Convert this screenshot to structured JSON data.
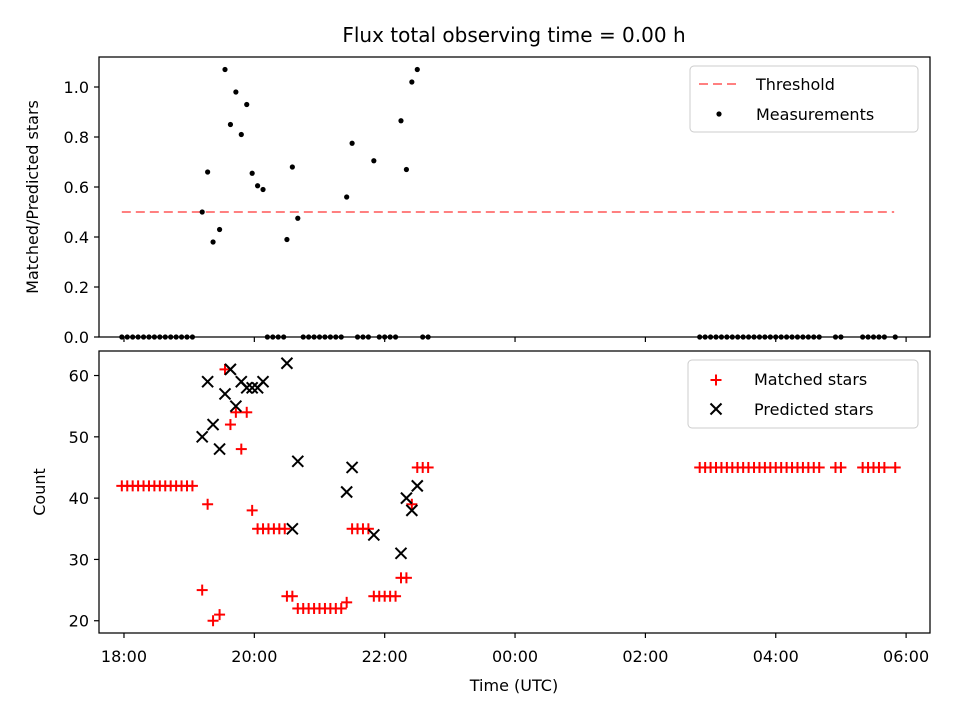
{
  "chart_data": [
    {
      "type": "scatter",
      "title": "Flux total observing time = 0.00 h",
      "ylabel": "Matched/Predicted stars",
      "ylim": [
        0.0,
        1.12
      ],
      "xlim": [
        "17:37",
        "06:22"
      ],
      "yticks": [
        "0.0",
        "0.2",
        "0.4",
        "0.6",
        "0.8",
        "1.0"
      ],
      "yticks_values": [
        0.0,
        0.2,
        0.4,
        0.6,
        0.8,
        1.0
      ],
      "legend_position": "top-right",
      "threshold": {
        "name": "Threshold",
        "y": 0.5,
        "x_start": "17:58",
        "x_end": "05:49",
        "color": "#ff8080"
      },
      "series": [
        {
          "name": "Measurements",
          "color": "#000000",
          "points": [
            [
              "17:58",
              0.0
            ],
            [
              "18:03",
              0.0
            ],
            [
              "18:08",
              0.0
            ],
            [
              "18:13",
              0.0
            ],
            [
              "18:18",
              0.0
            ],
            [
              "18:23",
              0.0
            ],
            [
              "18:28",
              0.0
            ],
            [
              "18:33",
              0.0
            ],
            [
              "18:38",
              0.0
            ],
            [
              "18:43",
              0.0
            ],
            [
              "18:48",
              0.0
            ],
            [
              "18:53",
              0.0
            ],
            [
              "18:58",
              0.0
            ],
            [
              "19:03",
              0.0
            ],
            [
              "19:12",
              0.5
            ],
            [
              "19:17",
              0.66
            ],
            [
              "19:22",
              0.38
            ],
            [
              "19:28",
              0.43
            ],
            [
              "19:33",
              1.07
            ],
            [
              "19:38",
              0.85
            ],
            [
              "19:43",
              0.98
            ],
            [
              "19:48",
              0.81
            ],
            [
              "19:53",
              0.93
            ],
            [
              "19:58",
              0.655
            ],
            [
              "20:03",
              0.605
            ],
            [
              "20:08",
              0.59
            ],
            [
              "20:12",
              0.0
            ],
            [
              "20:17",
              0.0
            ],
            [
              "20:22",
              0.0
            ],
            [
              "20:27",
              0.0
            ],
            [
              "20:30",
              0.39
            ],
            [
              "20:35",
              0.68
            ],
            [
              "20:40",
              0.475
            ],
            [
              "20:45",
              0.0
            ],
            [
              "20:50",
              0.0
            ],
            [
              "20:55",
              0.0
            ],
            [
              "21:00",
              0.0
            ],
            [
              "21:05",
              0.0
            ],
            [
              "21:10",
              0.0
            ],
            [
              "21:15",
              0.0
            ],
            [
              "21:20",
              0.0
            ],
            [
              "21:25",
              0.56
            ],
            [
              "21:30",
              0.775
            ],
            [
              "21:35",
              0.0
            ],
            [
              "21:40",
              0.0
            ],
            [
              "21:45",
              0.0
            ],
            [
              "21:50",
              0.705
            ],
            [
              "21:55",
              0.0
            ],
            [
              "22:00",
              0.0
            ],
            [
              "22:05",
              0.0
            ],
            [
              "22:10",
              0.0
            ],
            [
              "22:15",
              0.865
            ],
            [
              "22:20",
              0.67
            ],
            [
              "22:25",
              1.02
            ],
            [
              "22:30",
              1.07
            ],
            [
              "22:35",
              0.0
            ],
            [
              "22:40",
              0.0
            ],
            [
              "02:50",
              0.0
            ],
            [
              "02:55",
              0.0
            ],
            [
              "03:00",
              0.0
            ],
            [
              "03:05",
              0.0
            ],
            [
              "03:10",
              0.0
            ],
            [
              "03:15",
              0.0
            ],
            [
              "03:20",
              0.0
            ],
            [
              "03:25",
              0.0
            ],
            [
              "03:30",
              0.0
            ],
            [
              "03:35",
              0.0
            ],
            [
              "03:40",
              0.0
            ],
            [
              "03:45",
              0.0
            ],
            [
              "03:50",
              0.0
            ],
            [
              "03:55",
              0.0
            ],
            [
              "04:00",
              0.0
            ],
            [
              "04:05",
              0.0
            ],
            [
              "04:10",
              0.0
            ],
            [
              "04:15",
              0.0
            ],
            [
              "04:20",
              0.0
            ],
            [
              "04:25",
              0.0
            ],
            [
              "04:30",
              0.0
            ],
            [
              "04:35",
              0.0
            ],
            [
              "04:40",
              0.0
            ],
            [
              "04:55",
              0.0
            ],
            [
              "05:00",
              0.0
            ],
            [
              "05:20",
              0.0
            ],
            [
              "05:25",
              0.0
            ],
            [
              "05:30",
              0.0
            ],
            [
              "05:35",
              0.0
            ],
            [
              "05:40",
              0.0
            ],
            [
              "05:50",
              0.0
            ]
          ]
        }
      ]
    },
    {
      "type": "scatter",
      "title": "",
      "xlabel": "Time (UTC)",
      "ylabel": "Count",
      "ylim": [
        18,
        64
      ],
      "xlim": [
        "17:37",
        "06:22"
      ],
      "xticks": [
        "18:00",
        "20:00",
        "22:00",
        "00:00",
        "02:00",
        "04:00",
        "06:00"
      ],
      "yticks": [
        "20",
        "30",
        "40",
        "50",
        "60"
      ],
      "yticks_values": [
        20,
        30,
        40,
        50,
        60
      ],
      "legend_position": "top-right",
      "series": [
        {
          "name": "Matched stars",
          "marker": "plus",
          "color": "#ff0000",
          "points": [
            [
              "17:58",
              42
            ],
            [
              "18:03",
              42
            ],
            [
              "18:08",
              42
            ],
            [
              "18:13",
              42
            ],
            [
              "18:18",
              42
            ],
            [
              "18:23",
              42
            ],
            [
              "18:28",
              42
            ],
            [
              "18:33",
              42
            ],
            [
              "18:38",
              42
            ],
            [
              "18:43",
              42
            ],
            [
              "18:48",
              42
            ],
            [
              "18:53",
              42
            ],
            [
              "18:58",
              42
            ],
            [
              "19:03",
              42
            ],
            [
              "19:12",
              25
            ],
            [
              "19:17",
              39
            ],
            [
              "19:22",
              20
            ],
            [
              "19:28",
              21
            ],
            [
              "19:33",
              61
            ],
            [
              "19:38",
              52
            ],
            [
              "19:43",
              54
            ],
            [
              "19:48",
              48
            ],
            [
              "19:53",
              54
            ],
            [
              "19:58",
              38
            ],
            [
              "20:03",
              35
            ],
            [
              "20:08",
              35
            ],
            [
              "20:13",
              35
            ],
            [
              "20:18",
              35
            ],
            [
              "20:23",
              35
            ],
            [
              "20:28",
              35
            ],
            [
              "20:30",
              24
            ],
            [
              "20:35",
              24
            ],
            [
              "20:40",
              22
            ],
            [
              "20:45",
              22
            ],
            [
              "20:50",
              22
            ],
            [
              "20:55",
              22
            ],
            [
              "21:00",
              22
            ],
            [
              "21:05",
              22
            ],
            [
              "21:10",
              22
            ],
            [
              "21:15",
              22
            ],
            [
              "21:20",
              22
            ],
            [
              "21:25",
              23
            ],
            [
              "21:30",
              35
            ],
            [
              "21:35",
              35
            ],
            [
              "21:40",
              35
            ],
            [
              "21:45",
              35
            ],
            [
              "21:50",
              24
            ],
            [
              "21:55",
              24
            ],
            [
              "22:00",
              24
            ],
            [
              "22:05",
              24
            ],
            [
              "22:10",
              24
            ],
            [
              "22:15",
              27
            ],
            [
              "22:20",
              27
            ],
            [
              "22:25",
              39
            ],
            [
              "22:30",
              45
            ],
            [
              "22:35",
              45
            ],
            [
              "22:40",
              45
            ],
            [
              "02:50",
              45
            ],
            [
              "02:55",
              45
            ],
            [
              "03:00",
              45
            ],
            [
              "03:05",
              45
            ],
            [
              "03:10",
              45
            ],
            [
              "03:15",
              45
            ],
            [
              "03:20",
              45
            ],
            [
              "03:25",
              45
            ],
            [
              "03:30",
              45
            ],
            [
              "03:35",
              45
            ],
            [
              "03:40",
              45
            ],
            [
              "03:45",
              45
            ],
            [
              "03:50",
              45
            ],
            [
              "03:55",
              45
            ],
            [
              "04:00",
              45
            ],
            [
              "04:05",
              45
            ],
            [
              "04:10",
              45
            ],
            [
              "04:15",
              45
            ],
            [
              "04:20",
              45
            ],
            [
              "04:25",
              45
            ],
            [
              "04:30",
              45
            ],
            [
              "04:35",
              45
            ],
            [
              "04:40",
              45
            ],
            [
              "04:55",
              45
            ],
            [
              "05:00",
              45
            ],
            [
              "05:20",
              45
            ],
            [
              "05:25",
              45
            ],
            [
              "05:30",
              45
            ],
            [
              "05:35",
              45
            ],
            [
              "05:40",
              45
            ],
            [
              "05:50",
              45
            ]
          ]
        },
        {
          "name": "Predicted stars",
          "marker": "x",
          "color": "#000000",
          "points": [
            [
              "19:12",
              50
            ],
            [
              "19:17",
              59
            ],
            [
              "19:22",
              52
            ],
            [
              "19:28",
              48
            ],
            [
              "19:33",
              57
            ],
            [
              "19:38",
              61
            ],
            [
              "19:43",
              55
            ],
            [
              "19:48",
              59
            ],
            [
              "19:53",
              58
            ],
            [
              "19:58",
              58
            ],
            [
              "20:03",
              58
            ],
            [
              "20:08",
              59
            ],
            [
              "20:30",
              62
            ],
            [
              "20:35",
              35
            ],
            [
              "20:40",
              46
            ],
            [
              "21:25",
              41
            ],
            [
              "21:30",
              45
            ],
            [
              "21:50",
              34
            ],
            [
              "22:15",
              31
            ],
            [
              "22:20",
              40
            ],
            [
              "22:25",
              38
            ],
            [
              "22:30",
              42
            ]
          ]
        }
      ]
    }
  ]
}
